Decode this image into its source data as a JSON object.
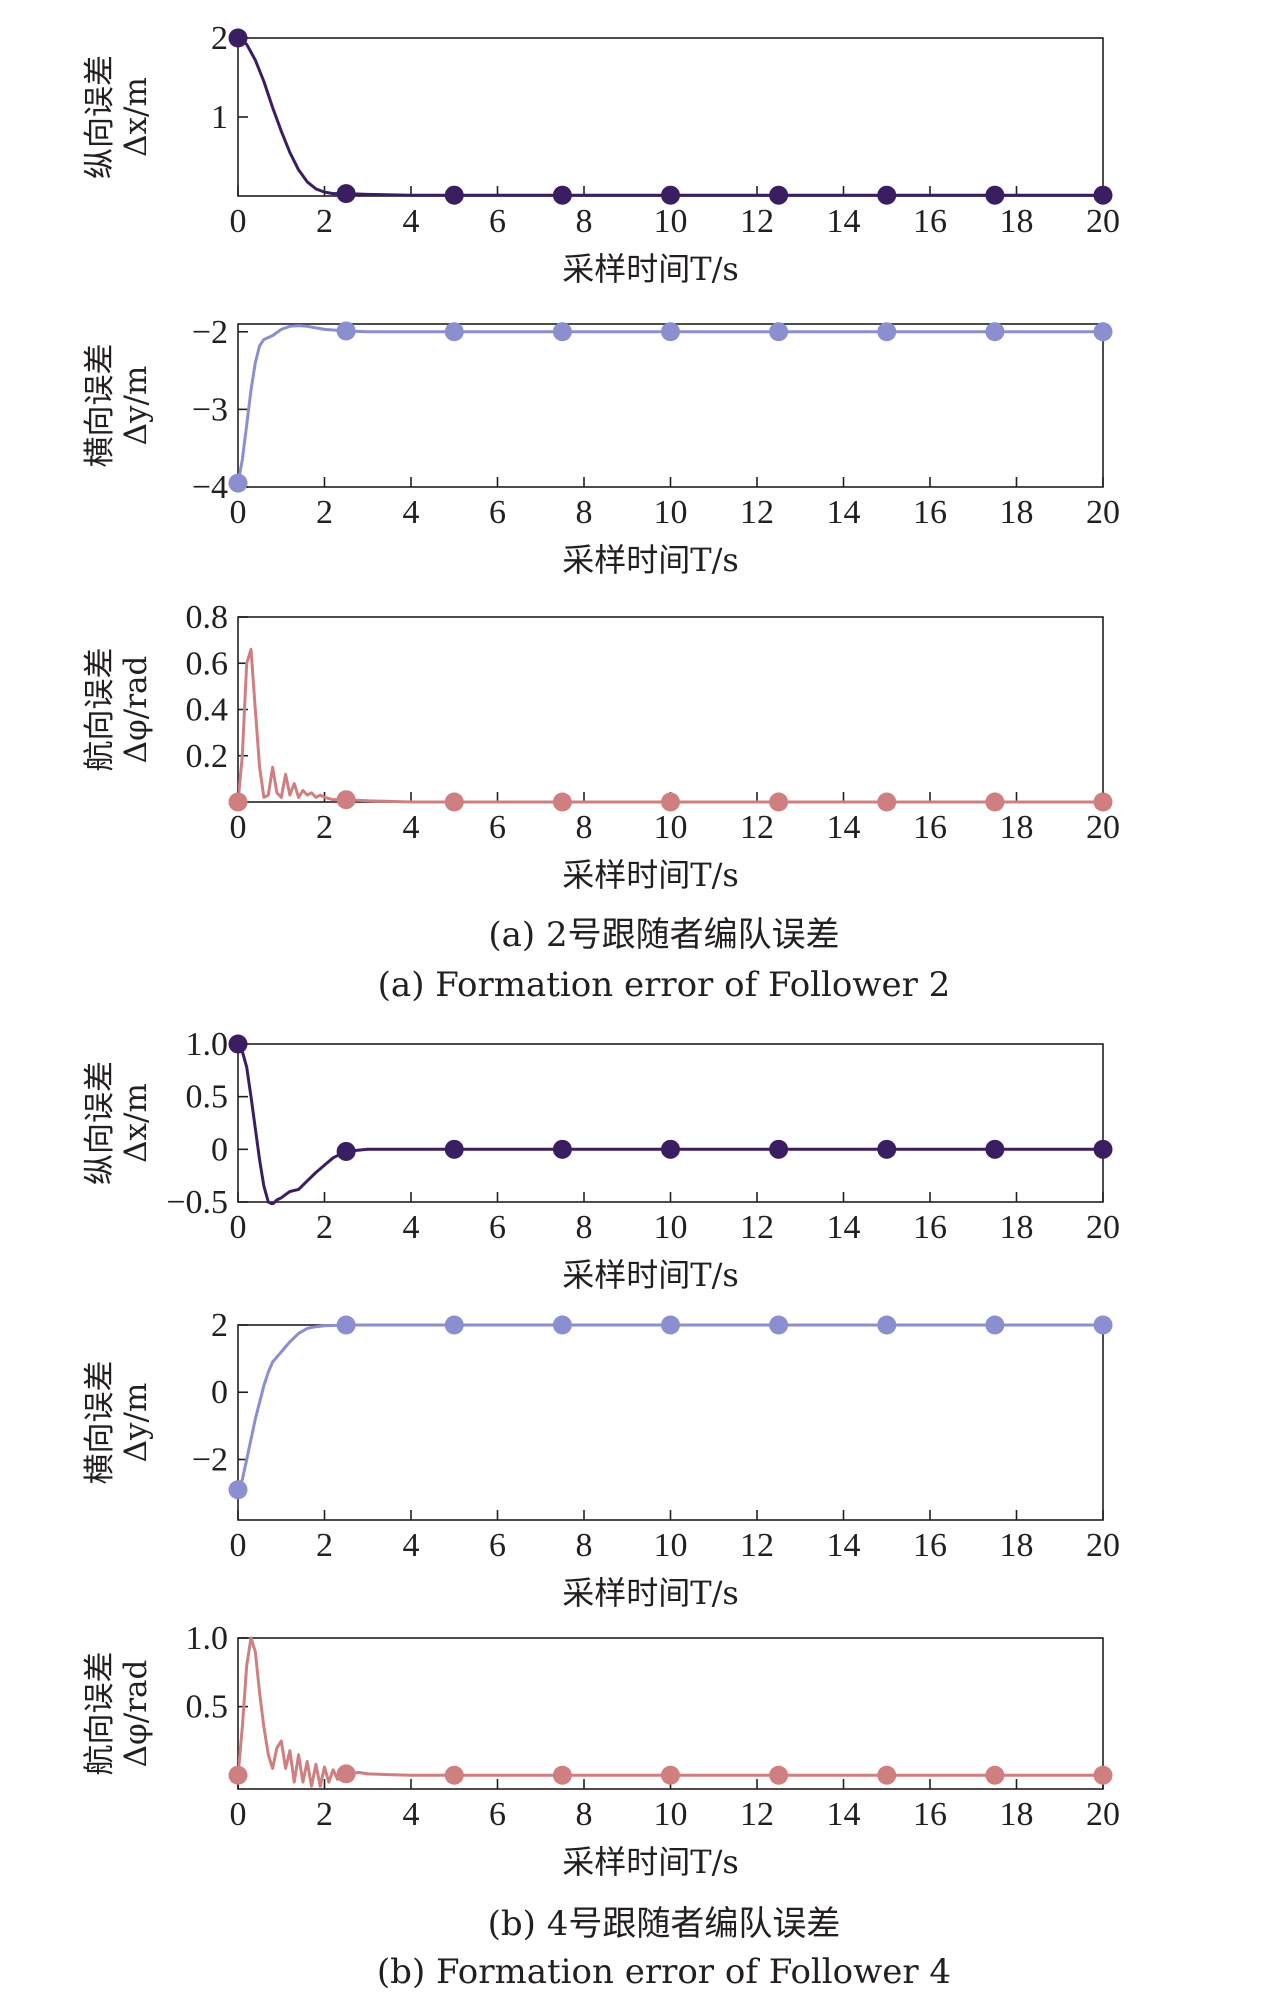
{
  "chart_data": [
    {
      "type": "line",
      "xlabel": "采样时间T/s",
      "ylabel": [
        "纵向误差",
        "Δx/m"
      ],
      "xlim": [
        0,
        20
      ],
      "ylim": [
        0,
        2
      ],
      "xticks": [
        0,
        2,
        4,
        6,
        8,
        10,
        12,
        14,
        16,
        18,
        20
      ],
      "yticks": [
        1,
        2
      ],
      "ytick_labels": [
        "1",
        "2"
      ],
      "color": "#3b1e61",
      "series": [
        {
          "x": [
            0,
            0.2,
            0.4,
            0.6,
            0.8,
            1.0,
            1.2,
            1.4,
            1.6,
            1.8,
            2.0,
            2.2,
            2.4,
            2.5,
            3,
            4,
            5,
            7.5,
            10,
            12.5,
            15,
            17.5,
            20
          ],
          "values": [
            2.0,
            1.92,
            1.72,
            1.45,
            1.12,
            0.82,
            0.55,
            0.33,
            0.18,
            0.09,
            0.05,
            0.03,
            0.03,
            0.03,
            0.02,
            0.01,
            0.01,
            0.01,
            0.01,
            0.01,
            0.01,
            0.01,
            0.01
          ]
        }
      ],
      "markers": [
        0,
        2.5,
        5,
        7.5,
        10,
        12.5,
        15,
        17.5,
        20
      ]
    },
    {
      "type": "line",
      "xlabel": "采样时间T/s",
      "ylabel": [
        "横向误差",
        "Δy/m"
      ],
      "xlim": [
        0,
        20
      ],
      "ylim": [
        -4,
        -1.9
      ],
      "xticks": [
        0,
        2,
        4,
        6,
        8,
        10,
        12,
        14,
        16,
        18,
        20
      ],
      "yticks": [
        -4,
        -3,
        -2
      ],
      "ytick_labels": [
        "−4",
        "−3",
        "−2"
      ],
      "color": "#8b8fd0",
      "series": [
        {
          "x": [
            0,
            0.1,
            0.2,
            0.3,
            0.4,
            0.5,
            0.6,
            0.8,
            1.0,
            1.2,
            1.4,
            1.6,
            1.8,
            2.0,
            2.5,
            3,
            4,
            5,
            7.5,
            10,
            12.5,
            15,
            17.5,
            20
          ],
          "values": [
            -3.95,
            -3.65,
            -3.2,
            -2.75,
            -2.4,
            -2.18,
            -2.1,
            -2.05,
            -1.97,
            -1.93,
            -1.92,
            -1.93,
            -1.95,
            -1.97,
            -1.99,
            -2.0,
            -2.0,
            -2.0,
            -2.0,
            -2.0,
            -2.0,
            -2.0,
            -2.0,
            -2.0
          ]
        }
      ],
      "markers": [
        0,
        2.5,
        5,
        7.5,
        10,
        12.5,
        15,
        17.5,
        20
      ]
    },
    {
      "type": "line",
      "xlabel": "采样时间T/s",
      "ylabel": [
        "航向误差",
        "Δφ/rad"
      ],
      "xlim": [
        0,
        20
      ],
      "ylim": [
        0,
        0.8
      ],
      "xticks": [
        0,
        2,
        4,
        6,
        8,
        10,
        12,
        14,
        16,
        18,
        20
      ],
      "yticks": [
        0.2,
        0.4,
        0.6,
        0.8
      ],
      "ytick_labels": [
        "0.2",
        "0.4",
        "0.6",
        "0.8"
      ],
      "color": "#d07f80",
      "series": [
        {
          "x": [
            0,
            0.1,
            0.2,
            0.3,
            0.4,
            0.5,
            0.6,
            0.7,
            0.8,
            0.9,
            1.0,
            1.1,
            1.2,
            1.3,
            1.4,
            1.5,
            1.6,
            1.7,
            1.8,
            1.9,
            2.0,
            2.2,
            2.5,
            3,
            4,
            5,
            7.5,
            10,
            12.5,
            15,
            17.5,
            20
          ],
          "values": [
            0.0,
            0.2,
            0.6,
            0.66,
            0.4,
            0.15,
            0.02,
            0.03,
            0.15,
            0.04,
            0.02,
            0.12,
            0.03,
            0.08,
            0.02,
            0.05,
            0.03,
            0.04,
            0.02,
            0.03,
            0.02,
            0.01,
            0.01,
            0.005,
            0.0,
            0.0,
            0.0,
            0.0,
            0.0,
            0.0,
            0.0,
            0.0
          ]
        }
      ],
      "markers": [
        0,
        2.5,
        5,
        7.5,
        10,
        12.5,
        15,
        17.5,
        20
      ]
    },
    {
      "type": "line",
      "xlabel": "采样时间T/s",
      "ylabel": [
        "纵向误差",
        "Δx/m"
      ],
      "xlim": [
        0,
        20
      ],
      "ylim": [
        -0.5,
        1.0
      ],
      "xticks": [
        0,
        2,
        4,
        6,
        8,
        10,
        12,
        14,
        16,
        18,
        20
      ],
      "yticks": [
        -0.5,
        0,
        0.5,
        1.0
      ],
      "ytick_labels": [
        "−0.5",
        "0",
        "0.5",
        "1.0"
      ],
      "color": "#3b1e61",
      "series": [
        {
          "x": [
            0,
            0.1,
            0.2,
            0.3,
            0.4,
            0.5,
            0.6,
            0.7,
            0.8,
            0.9,
            1.0,
            1.1,
            1.2,
            1.4,
            1.6,
            1.8,
            2.0,
            2.2,
            2.5,
            3,
            4,
            5,
            7.5,
            10,
            12.5,
            15,
            17.5,
            20
          ],
          "values": [
            1.0,
            0.93,
            0.78,
            0.5,
            0.2,
            -0.1,
            -0.35,
            -0.5,
            -0.52,
            -0.48,
            -0.46,
            -0.43,
            -0.4,
            -0.38,
            -0.3,
            -0.22,
            -0.15,
            -0.08,
            -0.02,
            0.0,
            0.0,
            0.0,
            0.0,
            0.0,
            0.0,
            0.0,
            0.0,
            0.0
          ]
        }
      ],
      "markers": [
        0,
        2.5,
        5,
        7.5,
        10,
        12.5,
        15,
        17.5,
        20
      ]
    },
    {
      "type": "line",
      "xlabel": "采样时间T/s",
      "ylabel": [
        "横向误差",
        "Δy/m"
      ],
      "xlim": [
        0,
        20
      ],
      "ylim": [
        -3.8,
        2.0
      ],
      "xticks": [
        0,
        2,
        4,
        6,
        8,
        10,
        12,
        14,
        16,
        18,
        20
      ],
      "yticks": [
        -2,
        0,
        2
      ],
      "ytick_labels": [
        "−2",
        "0",
        "2"
      ],
      "color": "#8b8fd0",
      "series": [
        {
          "x": [
            0,
            0.1,
            0.2,
            0.3,
            0.4,
            0.5,
            0.6,
            0.7,
            0.8,
            1.0,
            1.2,
            1.4,
            1.6,
            1.8,
            2.0,
            2.5,
            3,
            4,
            5,
            7.5,
            10,
            12.5,
            15,
            17.5,
            20
          ],
          "values": [
            -2.9,
            -2.6,
            -2.0,
            -1.4,
            -0.8,
            -0.3,
            0.2,
            0.6,
            0.9,
            1.2,
            1.5,
            1.75,
            1.9,
            1.95,
            1.98,
            2.0,
            2.0,
            2.0,
            2.0,
            2.0,
            2.0,
            2.0,
            2.0,
            2.0,
            2.0
          ]
        }
      ],
      "markers": [
        0,
        2.5,
        5,
        7.5,
        10,
        12.5,
        15,
        17.5,
        20
      ]
    },
    {
      "type": "line",
      "xlabel": "采样时间T/s",
      "ylabel": [
        "航向误差",
        "Δφ/rad"
      ],
      "xlim": [
        0,
        20
      ],
      "ylim": [
        -0.1,
        1.0
      ],
      "xticks": [
        0,
        2,
        4,
        6,
        8,
        10,
        12,
        14,
        16,
        18,
        20
      ],
      "yticks": [
        0.5,
        1.0
      ],
      "ytick_labels": [
        "0.5",
        "1.0"
      ],
      "color": "#d07f80",
      "series": [
        {
          "x": [
            0,
            0.1,
            0.2,
            0.3,
            0.4,
            0.5,
            0.6,
            0.7,
            0.8,
            0.9,
            1.0,
            1.1,
            1.2,
            1.3,
            1.4,
            1.5,
            1.6,
            1.7,
            1.8,
            1.9,
            2.0,
            2.1,
            2.2,
            2.3,
            2.4,
            2.5,
            2.8,
            3,
            4,
            5,
            7.5,
            10,
            12.5,
            15,
            17.5,
            20
          ],
          "values": [
            0.0,
            0.35,
            0.8,
            1.0,
            0.9,
            0.6,
            0.35,
            0.15,
            0.05,
            0.2,
            0.25,
            0.05,
            0.18,
            -0.05,
            0.15,
            -0.05,
            0.1,
            -0.08,
            0.08,
            -0.08,
            0.06,
            -0.05,
            0.04,
            -0.03,
            0.03,
            0.01,
            0.02,
            0.01,
            0.0,
            0.0,
            0.0,
            0.0,
            0.0,
            0.0,
            0.0,
            0.0
          ]
        }
      ],
      "markers": [
        0,
        2.5,
        5,
        7.5,
        10,
        12.5,
        15,
        17.5,
        20
      ]
    }
  ],
  "captions": {
    "a_cn": "(a) 2号跟随者编队误差",
    "a_en": "(a) Formation error of Follower 2",
    "b_cn": "(b) 4号跟随者编队误差",
    "b_en": "(b) Formation error of Follower 4"
  }
}
